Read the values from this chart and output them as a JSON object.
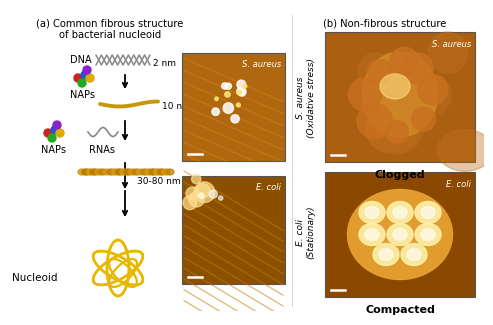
{
  "title_a": "(a) Common fibrous structure\nof bacterial nucleoid",
  "title_b": "(b) Non-fibrous structure",
  "label_dna": "DNA",
  "label_naps1": "NAPs",
  "label_naps2": "NAPs",
  "label_rnas": "RNAs",
  "label_nucleoid": "Nucleoid",
  "label_2nm": "2 nm",
  "label_10nm": "10 nm",
  "label_30_80nm": "30-80 nm",
  "label_s_aureus_top": "S. aureus",
  "label_e_coli_bottom": "E. coli",
  "label_s_aureus_b": "S. aureus",
  "label_e_coli_b": "E. coli",
  "label_clogged": "Clogged",
  "label_compacted": "Compacted",
  "label_oxidative": "S. aureus\n(Oxidative stress)",
  "label_stationary": "E. coli\n(Stationary)",
  "bg_color": "#ffffff",
  "gold_color": "#c8960a",
  "afm_bg": "#b86800",
  "afm_bg2": "#9a5500",
  "text_color": "#000000",
  "white": "#ffffff",
  "gray": "#888888",
  "dot_colors": [
    "#cc2222",
    "#2255cc",
    "#22aa22",
    "#ddaa00",
    "#8822cc"
  ]
}
